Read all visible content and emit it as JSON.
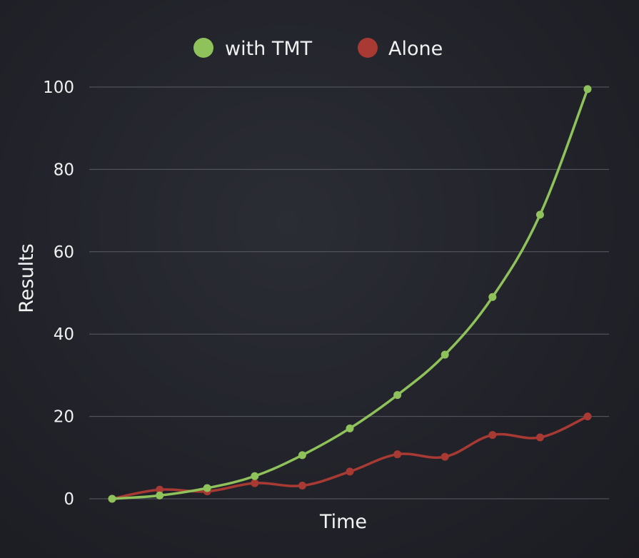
{
  "chart_data": {
    "type": "line",
    "title": "",
    "xlabel": "Time",
    "ylabel": "Results",
    "ylim": [
      0,
      100
    ],
    "yticks": [
      0,
      20,
      40,
      60,
      80,
      100
    ],
    "grid": true,
    "legend_position": "top-center",
    "x": [
      0,
      1,
      2,
      3,
      4,
      5,
      6,
      7,
      8,
      9,
      10
    ],
    "series": [
      {
        "name": "with TMT",
        "color": "#8fc25a",
        "values": [
          0,
          0.8,
          2.6,
          5.5,
          10.6,
          17.1,
          25.2,
          35.0,
          49.0,
          69.0,
          99.5
        ]
      },
      {
        "name": "Alone",
        "color": "#a83a33",
        "values": [
          0,
          2.2,
          1.8,
          3.8,
          3.2,
          6.6,
          10.8,
          10.2,
          15.5,
          14.9,
          20.0
        ]
      }
    ]
  }
}
